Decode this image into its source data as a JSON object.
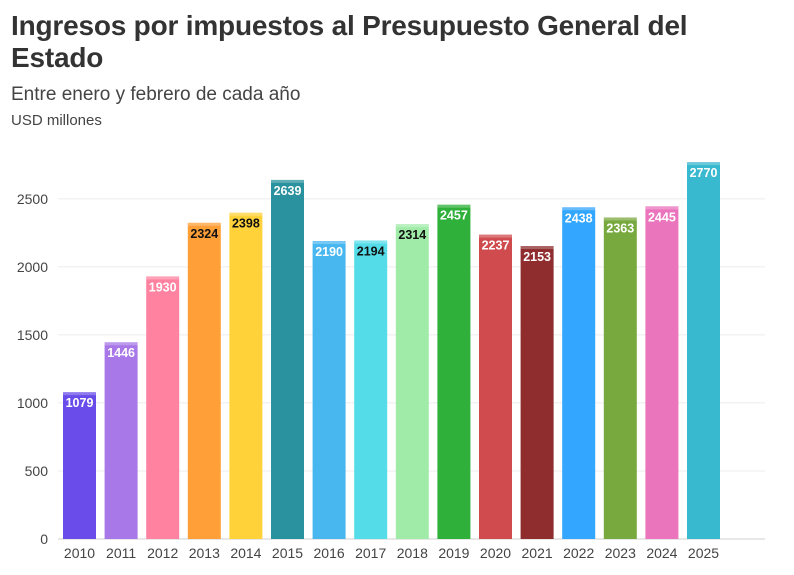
{
  "chart_data": {
    "type": "bar",
    "title": "Ingresos por impuestos al Presupuesto General del Estado",
    "subtitle": "Entre enero y febrero de cada año",
    "unit_label": "USD millones",
    "xlabel": "",
    "ylabel": "",
    "grid": true,
    "ylim": [
      0,
      2800
    ],
    "y_ticks": [
      0,
      500,
      1000,
      1500,
      2000,
      2500
    ],
    "categories": [
      "2010",
      "2011",
      "2012",
      "2013",
      "2014",
      "2015",
      "2016",
      "2017",
      "2018",
      "2019",
      "2020",
      "2021",
      "2022",
      "2023",
      "2024",
      "2025"
    ],
    "values": [
      1079,
      1446,
      1930,
      2324,
      2398,
      2639,
      2190,
      2194,
      2314,
      2457,
      2237,
      2153,
      2438,
      2363,
      2445,
      2770
    ],
    "colors": [
      "#6a4cea",
      "#a878e8",
      "#ff83a1",
      "#ff9f38",
      "#ffd23a",
      "#2a929e",
      "#48b7f0",
      "#54dde8",
      "#a1eba9",
      "#2fb03a",
      "#d04b4e",
      "#8e2c2e",
      "#33a6ff",
      "#78a93e",
      "#ea75bd",
      "#38b9cf"
    ],
    "label_colors": [
      "#ffffff",
      "#ffffff",
      "#ffffff",
      "#111111",
      "#111111",
      "#ffffff",
      "#ffffff",
      "#111111",
      "#111111",
      "#ffffff",
      "#ffffff",
      "#ffffff",
      "#ffffff",
      "#ffffff",
      "#ffffff",
      "#ffffff"
    ]
  }
}
